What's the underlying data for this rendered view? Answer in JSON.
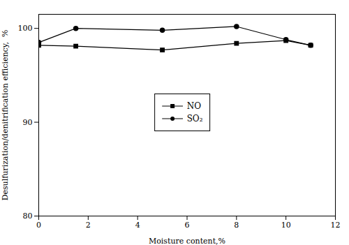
{
  "chart_data": {
    "type": "line",
    "xlabel": "Moisture content,%",
    "ylabel": "Desulfurization/denitrification efficiency,  %",
    "x": [
      0,
      1.5,
      5,
      8,
      10,
      11
    ],
    "series": [
      {
        "name": "NO",
        "color": "#000000",
        "marker": "square",
        "values": [
          98.2,
          98.1,
          97.7,
          98.4,
          98.7,
          98.2
        ]
      },
      {
        "name": "SO₂",
        "color": "#000000",
        "marker": "circle",
        "values": [
          98.5,
          100.0,
          99.8,
          100.2,
          98.8,
          98.2
        ]
      }
    ],
    "xlim": [
      0,
      12
    ],
    "ylim": [
      80,
      101.5
    ],
    "xticks": [
      0,
      2,
      4,
      6,
      8,
      10,
      12
    ],
    "yticks": [
      80,
      90,
      100
    ],
    "grid": false,
    "legend": "center"
  }
}
